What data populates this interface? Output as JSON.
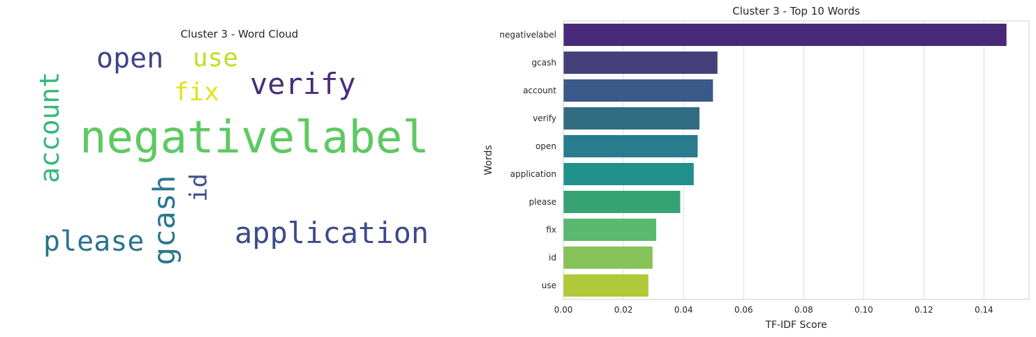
{
  "wordcloud": {
    "title": "Cluster 3 - Word Cloud",
    "words": [
      {
        "text": "negativelabel",
        "color": "#5ec962"
      },
      {
        "text": "open",
        "color": "#414487"
      },
      {
        "text": "use",
        "color": "#bddf26"
      },
      {
        "text": "verify",
        "color": "#472d7b"
      },
      {
        "text": "fix",
        "color": "#e0e318"
      },
      {
        "text": "account",
        "color": "#35b779"
      },
      {
        "text": "gcash",
        "color": "#2a788e"
      },
      {
        "text": "id",
        "color": "#3b528b"
      },
      {
        "text": "please",
        "color": "#2c728e"
      },
      {
        "text": "application",
        "color": "#3e4a89"
      }
    ]
  },
  "chart_data": {
    "type": "bar",
    "orientation": "horizontal",
    "title": "Cluster 3 - Top 10 Words",
    "xlabel": "TF-IDF Score",
    "ylabel": "Words",
    "categories": [
      "negativelabel",
      "gcash",
      "account",
      "verify",
      "open",
      "application",
      "please",
      "fix",
      "id",
      "use"
    ],
    "values": [
      0.1475,
      0.0513,
      0.0498,
      0.0453,
      0.0447,
      0.0434,
      0.0389,
      0.0309,
      0.0297,
      0.0283
    ],
    "colors": [
      "#482878",
      "#453f7a",
      "#3b5a8a",
      "#316c82",
      "#287c8e",
      "#22908a",
      "#37a274",
      "#5bb86f",
      "#86c359",
      "#b0c93a"
    ],
    "xlim": [
      0,
      0.155
    ],
    "xticks": [
      "0.00",
      "0.02",
      "0.04",
      "0.06",
      "0.08",
      "0.10",
      "0.12",
      "0.14"
    ],
    "grid": true
  }
}
